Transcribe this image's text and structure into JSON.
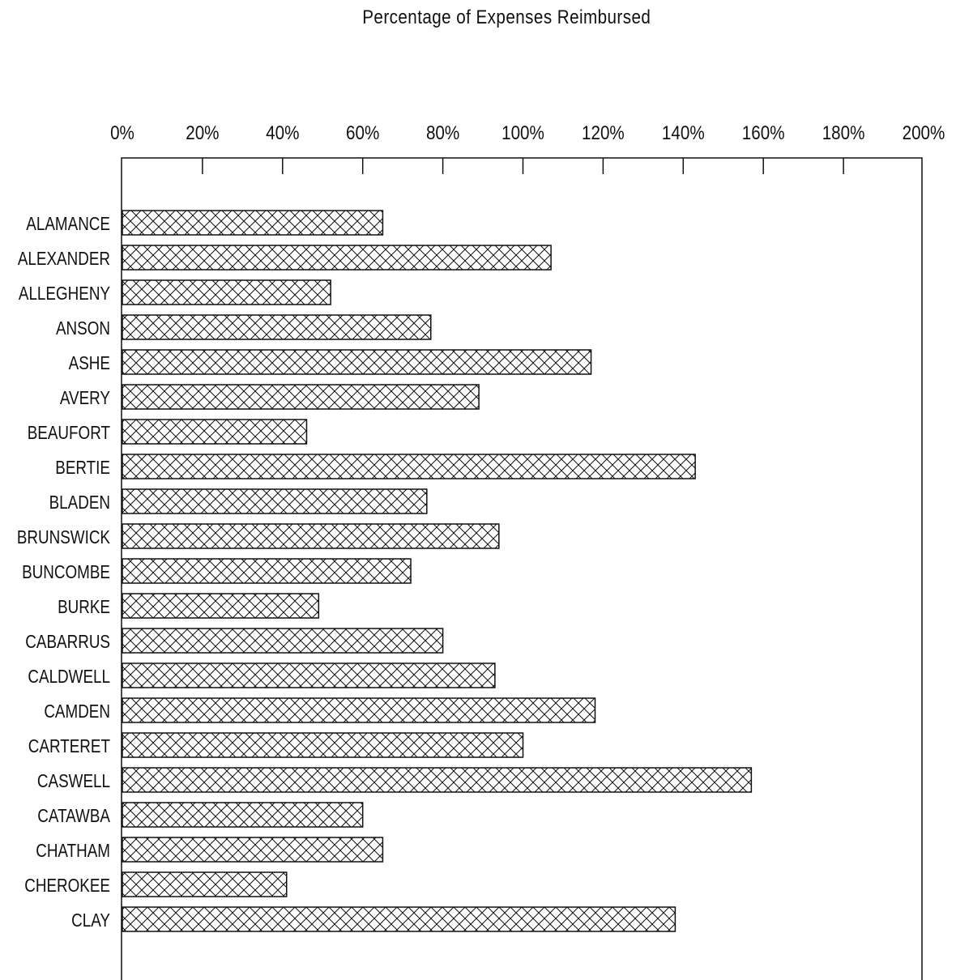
{
  "chart_data": {
    "type": "bar",
    "orientation": "horizontal",
    "title": "Percentage of Expenses Reimbursed",
    "xlabel": "",
    "ylabel": "",
    "xlim": [
      0,
      200
    ],
    "x_ticks": [
      "0%",
      "20%",
      "40%",
      "60%",
      "80%",
      "100%",
      "120%",
      "140%",
      "160%",
      "180%",
      "200%"
    ],
    "grid": false,
    "fill_pattern": "crosshatch",
    "categories": [
      "ALAMANCE",
      "ALEXANDER",
      "ALLEGHENY",
      "ANSON",
      "ASHE",
      "AVERY",
      "BEAUFORT",
      "BERTIE",
      "BLADEN",
      "BRUNSWICK",
      "BUNCOMBE",
      "BURKE",
      "CABARRUS",
      "CALDWELL",
      "CAMDEN",
      "CARTERET",
      "CASWELL",
      "CATAWBA",
      "CHATHAM",
      "CHEROKEE",
      "CLAY"
    ],
    "values": [
      65,
      107,
      52,
      77,
      117,
      89,
      46,
      143,
      76,
      94,
      72,
      49,
      80,
      93,
      118,
      100,
      157,
      60,
      65,
      41,
      138
    ]
  }
}
